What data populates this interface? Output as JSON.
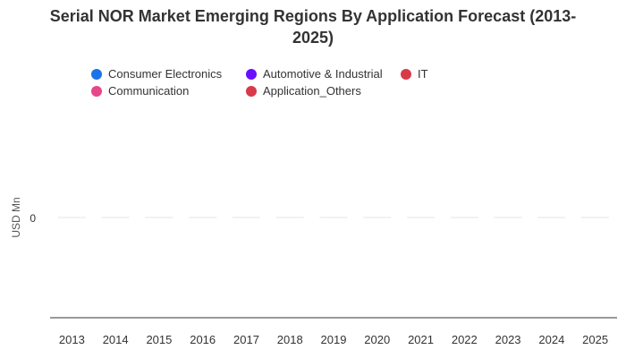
{
  "chart_data": {
    "type": "bar",
    "title_lines": [
      "Serial NOR Market Emerging Regions By Application Forecast (2013-",
      "2025)"
    ],
    "ylabel": "USD Mn",
    "xlabel": "",
    "categories": [
      "2013",
      "2014",
      "2015",
      "2016",
      "2017",
      "2018",
      "2019",
      "2020",
      "2021",
      "2022",
      "2023",
      "2024",
      "2025"
    ],
    "y_ticks": [
      "0"
    ],
    "series": [
      {
        "name": "Consumer Electronics",
        "color": "#1a73e8",
        "values": [
          0,
          0,
          0,
          0,
          0,
          0,
          0,
          0,
          0,
          0,
          0,
          0,
          0
        ]
      },
      {
        "name": "Automotive & Industrial",
        "color": "#6a0dff",
        "values": [
          0,
          0,
          0,
          0,
          0,
          0,
          0,
          0,
          0,
          0,
          0,
          0,
          0
        ]
      },
      {
        "name": "IT",
        "color": "#d93a4a",
        "values": [
          0,
          0,
          0,
          0,
          0,
          0,
          0,
          0,
          0,
          0,
          0,
          0,
          0
        ]
      },
      {
        "name": "Communication",
        "color": "#e8468a",
        "values": [
          0,
          0,
          0,
          0,
          0,
          0,
          0,
          0,
          0,
          0,
          0,
          0,
          0
        ]
      },
      {
        "name": "Application_Others",
        "color": "#d93a4a",
        "values": [
          0,
          0,
          0,
          0,
          0,
          0,
          0,
          0,
          0,
          0,
          0,
          0,
          0
        ]
      }
    ],
    "legend_position": "top",
    "grid": true
  }
}
